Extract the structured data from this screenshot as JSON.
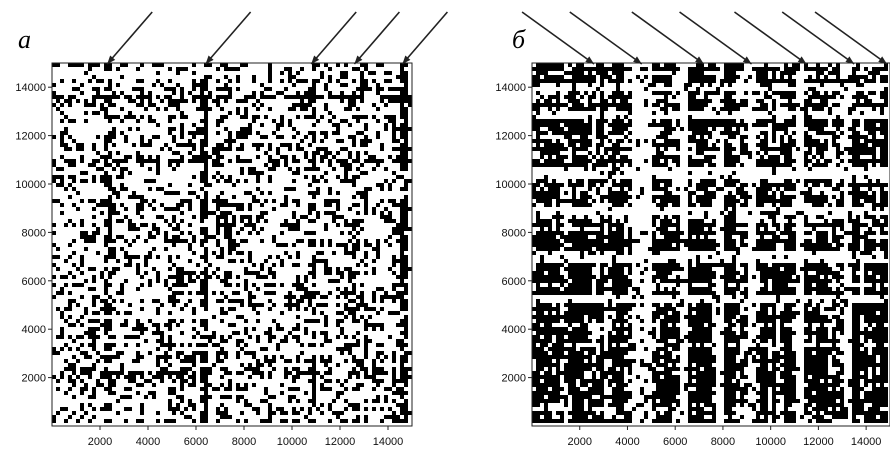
{
  "chart_data": [
    {
      "type": "heatmap",
      "panel_label": "а",
      "x_ticks": [
        2000,
        4000,
        6000,
        8000,
        10000,
        12000,
        14000
      ],
      "y_ticks": [
        2000,
        4000,
        6000,
        8000,
        10000,
        12000,
        14000
      ],
      "xlim": [
        0,
        15000
      ],
      "ylim": [
        0,
        15000
      ],
      "grid": false,
      "colors": {
        "mark": "#000000",
        "background": "#ffffff"
      },
      "density": 0.3,
      "arrow_x": [
        2300,
        6400,
        10800,
        12600,
        14600
      ],
      "band_x": [
        2300,
        6400,
        10800,
        12600,
        14600
      ],
      "band_y": [
        2000,
        11000,
        13500
      ]
    },
    {
      "type": "heatmap",
      "panel_label": "б",
      "x_ticks": [
        2000,
        4000,
        6000,
        8000,
        10000,
        12000,
        14000
      ],
      "y_ticks": [
        2000,
        4000,
        6000,
        8000,
        10000,
        12000,
        14000
      ],
      "xlim": [
        0,
        15000
      ],
      "ylim": [
        0,
        15000
      ],
      "grid": false,
      "colors": {
        "mark": "#000000",
        "background": "#ffffff"
      },
      "density": 0.7,
      "arrow_x": [
        2600,
        4600,
        7200,
        9200,
        11500,
        13500,
        14900
      ],
      "light_x": [
        [
          4200,
          5000
        ],
        [
          6200,
          6600
        ],
        [
          7700,
          8100
        ],
        [
          9100,
          9500
        ],
        [
          11100,
          11500
        ],
        [
          13100,
          13500
        ]
      ],
      "light_y": [
        [
          5000,
          5400
        ],
        [
          6700,
          7100
        ],
        [
          8600,
          9000
        ],
        [
          10200,
          10600
        ],
        [
          12600,
          13000
        ],
        [
          13900,
          14200
        ]
      ]
    }
  ]
}
